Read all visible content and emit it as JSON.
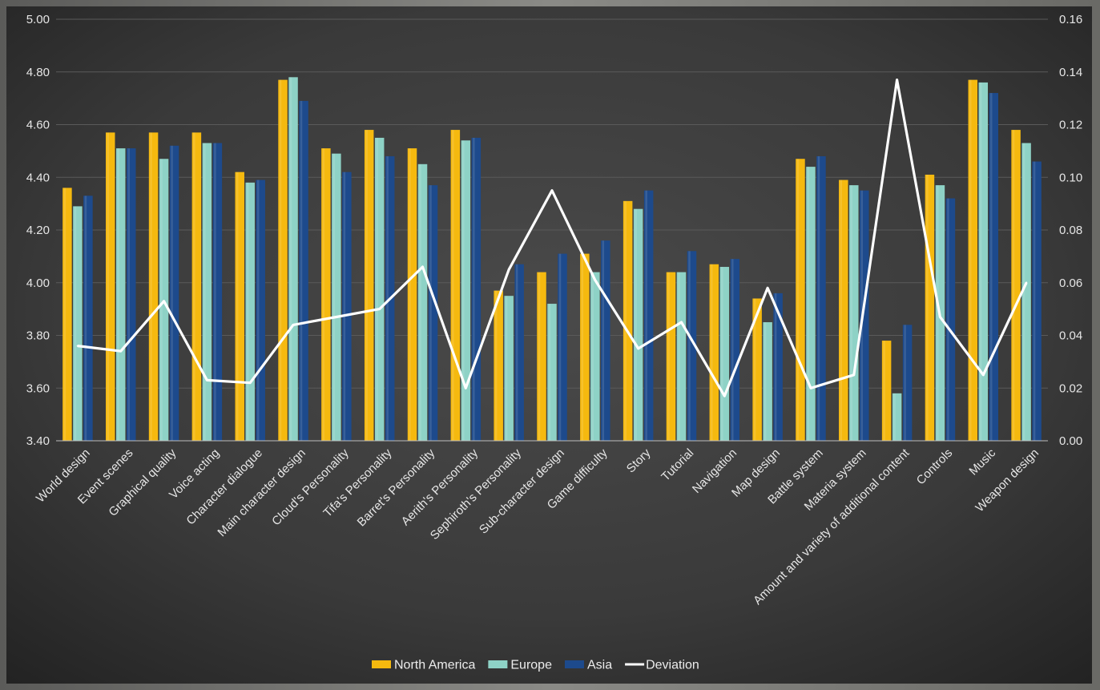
{
  "chart_data": {
    "type": "bar",
    "categories": [
      "World design",
      "Event scenes",
      "Graphical quality",
      "Voice acting",
      "Character dialogue",
      "Main character design",
      "Cloud's Personality",
      "Tifa's Personality",
      "Barret's Personality",
      "Aerith's Personality",
      "Sephiroth's Personality",
      "Sub-character design",
      "Game difficulty",
      "Story",
      "Tutorial",
      "Navigation",
      "Map design",
      "Battle system",
      "Materia system",
      "Amount and variety of additional content",
      "Controls",
      "Music",
      "Weapon design"
    ],
    "series": [
      {
        "name": "North America",
        "color": "#f5b90f",
        "axis": "left",
        "values": [
          4.36,
          4.57,
          4.57,
          4.57,
          4.42,
          4.77,
          4.51,
          4.58,
          4.51,
          4.58,
          3.97,
          4.04,
          4.11,
          4.31,
          4.04,
          4.07,
          3.94,
          4.47,
          4.39,
          3.78,
          4.41,
          4.77,
          4.58
        ]
      },
      {
        "name": "Europe",
        "color": "#8ed2c6",
        "axis": "left",
        "values": [
          4.29,
          4.51,
          4.47,
          4.53,
          4.38,
          4.78,
          4.49,
          4.55,
          4.45,
          4.54,
          3.95,
          3.92,
          4.04,
          4.28,
          4.04,
          4.06,
          3.85,
          4.44,
          4.37,
          3.58,
          4.37,
          4.76,
          4.53
        ]
      },
      {
        "name": "Asia",
        "color": "#1d4a8c",
        "axis": "left",
        "values": [
          4.33,
          4.51,
          4.52,
          4.53,
          4.39,
          4.69,
          4.42,
          4.48,
          4.37,
          4.55,
          4.07,
          4.11,
          4.16,
          4.35,
          4.12,
          4.09,
          3.96,
          4.48,
          4.35,
          3.84,
          4.32,
          4.72,
          4.46
        ]
      },
      {
        "name": "Deviation",
        "color": "#ffffff",
        "axis": "right",
        "type": "line",
        "values": [
          0.036,
          0.034,
          0.053,
          0.023,
          0.022,
          0.044,
          0.047,
          0.05,
          0.066,
          0.02,
          0.065,
          0.095,
          0.061,
          0.035,
          0.045,
          0.017,
          0.058,
          0.02,
          0.025,
          0.137,
          0.047,
          0.025,
          0.06
        ]
      }
    ],
    "y_left": {
      "ylim": [
        3.4,
        5.0
      ],
      "ticks": [
        "3.40",
        "3.60",
        "3.80",
        "4.00",
        "4.20",
        "4.40",
        "4.60",
        "4.80",
        "5.00"
      ]
    },
    "y_right": {
      "ylim": [
        0,
        0.16
      ],
      "ticks": [
        "0.00",
        "0.02",
        "0.04",
        "0.06",
        "0.08",
        "0.10",
        "0.12",
        "0.14",
        "0.16"
      ]
    },
    "grid": true,
    "legend": "bottom-center",
    "title": "",
    "xlabel": "",
    "ylabel": ""
  }
}
